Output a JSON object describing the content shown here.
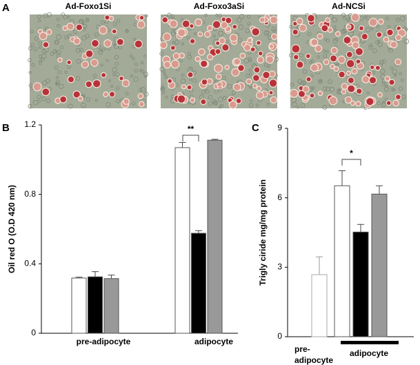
{
  "panel_a": {
    "label": "A",
    "images": [
      {
        "title": "Ad-Foxo1Si"
      },
      {
        "title": "Ad-Foxo3aSi"
      },
      {
        "title": "Ad-NCSi"
      }
    ]
  },
  "chart_data": [
    {
      "type": "bar",
      "panel_label": "B",
      "ylabel": "Oil red O (O.D 420 nm)",
      "categories": [
        "pre-adipocyte",
        "adipocyte"
      ],
      "series": [
        {
          "color": "#ffffff",
          "values": [
            0.318,
            1.069
          ],
          "errors": [
            0.005,
            0.03
          ]
        },
        {
          "color": "#000000",
          "values": [
            0.325,
            0.576
          ],
          "errors": [
            0.03,
            0.015
          ]
        },
        {
          "color": "#999999",
          "values": [
            0.315,
            1.112
          ],
          "errors": [
            0.02,
            0.005
          ]
        }
      ],
      "ylim": [
        0,
        1.2
      ],
      "yticks": [
        0,
        0.4,
        0.8,
        1.2
      ],
      "annotation": "**"
    },
    {
      "type": "bar",
      "panel_label": "C",
      "ylabel": "Trigly ciride mg/mg protein",
      "categories": [
        "pre-adipocyte",
        "adipocyte"
      ],
      "series": [
        {
          "color": "#ffffff",
          "values": [
            2.68,
            6.52
          ],
          "errors": [
            0.77,
            0.65
          ]
        },
        {
          "color": "#000000",
          "values": [
            null,
            4.52
          ],
          "errors": [
            null,
            0.33
          ]
        },
        {
          "color": "#999999",
          "values": [
            null,
            6.16
          ],
          "errors": [
            null,
            0.36
          ]
        }
      ],
      "ylim": [
        0,
        9
      ],
      "yticks": [
        0,
        3,
        6,
        9
      ],
      "annotation": "*"
    }
  ]
}
